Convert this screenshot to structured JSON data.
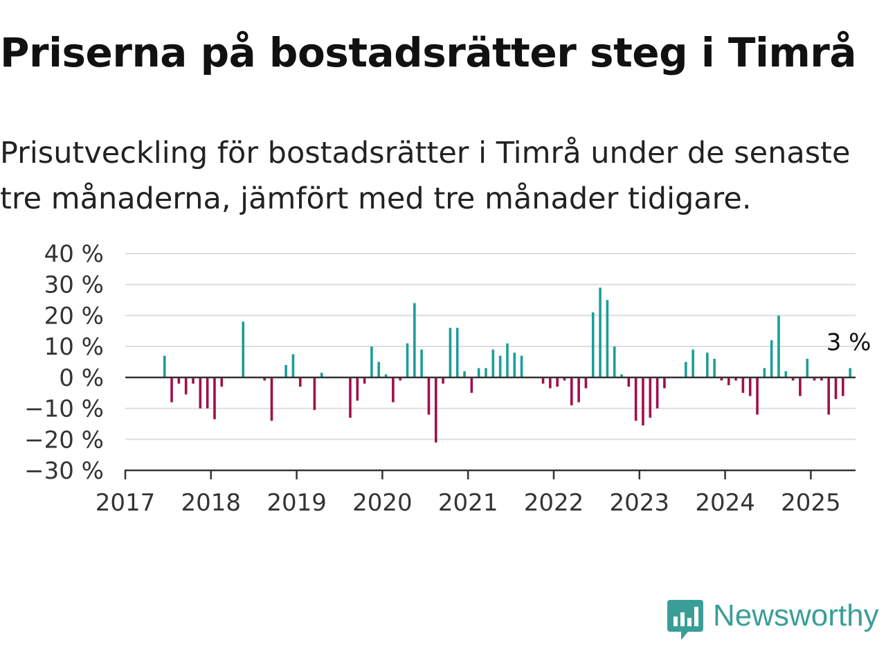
{
  "title": "Priserna på bostadsrätter steg i Timrå",
  "subtitle": "Prisutveckling för bostadsrätter i Timrå under de senaste tre månaderna, jämfört med tre månader tidigare.",
  "logo": {
    "text": "Newsworthy",
    "icon": "speech-bubble-bar-chart-icon"
  },
  "colors": {
    "positive": "#1a9e98",
    "negative": "#a30d4a",
    "grid": "#dddddd",
    "axis": "#333333",
    "brand": "#3a9e98"
  },
  "chart_data": {
    "type": "bar",
    "x_start": "2017-01",
    "x_ticks": [
      "2017",
      "2018",
      "2019",
      "2020",
      "2021",
      "2022",
      "2023",
      "2024",
      "2025"
    ],
    "y_ticks": [
      "40 %",
      "30 %",
      "20 %",
      "10 %",
      "0 %",
      "−10 %",
      "−20 %",
      "−30 %"
    ],
    "ylim": [
      -30,
      40
    ],
    "grid": true,
    "end_label": "3 %",
    "values": [
      null,
      null,
      null,
      null,
      null,
      7,
      -8,
      -2,
      -5.5,
      -2,
      -10,
      -10,
      -13.5,
      -3,
      null,
      null,
      18,
      null,
      null,
      -1,
      -14,
      null,
      4,
      7.5,
      -3,
      null,
      -10.5,
      1.5,
      null,
      null,
      null,
      -13,
      -7.5,
      -2,
      10,
      5,
      1,
      -8,
      -1,
      11,
      24,
      9,
      -12,
      -21,
      -2,
      16,
      16,
      2,
      -5,
      3,
      3,
      9,
      7,
      11,
      8,
      7,
      null,
      null,
      -2,
      -3.5,
      -3,
      -1,
      -9,
      -8,
      -3.5,
      21,
      29,
      25,
      10,
      1,
      -3,
      -14,
      -15.5,
      -13,
      -10,
      -3.5,
      null,
      null,
      5,
      9,
      null,
      8,
      6,
      -1,
      -2.5,
      -1,
      -5,
      -6,
      -12,
      3,
      12,
      20,
      2,
      -1,
      -6,
      6,
      -1,
      -1,
      -12,
      -7,
      -6,
      3
    ]
  }
}
